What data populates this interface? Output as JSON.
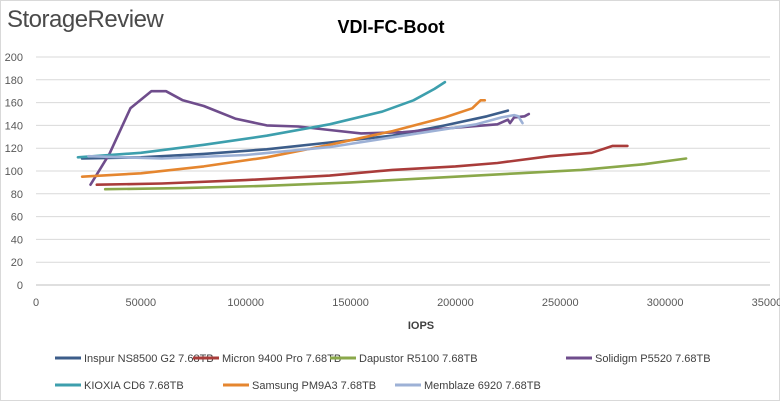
{
  "header": {
    "logo_text": "StorageReview"
  },
  "chart_data": {
    "type": "line",
    "title": "VDI-FC-Boot",
    "xlabel": "IOPS",
    "ylabel": "",
    "xlim": [
      0,
      350000
    ],
    "ylim": [
      0,
      200
    ],
    "xticks": [
      0,
      50000,
      100000,
      150000,
      200000,
      250000,
      300000,
      350000
    ],
    "yticks": [
      0,
      20,
      40,
      60,
      80,
      100,
      120,
      140,
      160,
      180,
      200
    ],
    "grid": true,
    "legend_position": "bottom",
    "series": [
      {
        "name": "Inspur NS8500 G2 7.68TB",
        "color": "#3c5d8a",
        "points": [
          [
            22000,
            111
          ],
          [
            50000,
            112
          ],
          [
            80000,
            115
          ],
          [
            110000,
            119
          ],
          [
            140000,
            125
          ],
          [
            170000,
            131
          ],
          [
            195000,
            140
          ],
          [
            215000,
            148
          ],
          [
            225000,
            153
          ]
        ]
      },
      {
        "name": "Micron 9400 Pro 7.68TB",
        "color": "#a93c3a",
        "points": [
          [
            29000,
            88
          ],
          [
            60000,
            89
          ],
          [
            100000,
            92
          ],
          [
            140000,
            96
          ],
          [
            170000,
            101
          ],
          [
            200000,
            104
          ],
          [
            220000,
            107
          ],
          [
            245000,
            113
          ],
          [
            265000,
            116
          ],
          [
            275000,
            122
          ],
          [
            282000,
            122
          ]
        ]
      },
      {
        "name": "Dapustor R5100 7.68TB",
        "color": "#8aa84a",
        "points": [
          [
            33000,
            84
          ],
          [
            70000,
            85
          ],
          [
            110000,
            87
          ],
          [
            150000,
            90
          ],
          [
            190000,
            94
          ],
          [
            230000,
            98
          ],
          [
            260000,
            101
          ],
          [
            290000,
            106
          ],
          [
            310000,
            111
          ]
        ]
      },
      {
        "name": "Solidigm P5520 7.68TB",
        "color": "#6f4d8c",
        "points": [
          [
            26000,
            88
          ],
          [
            35000,
            115
          ],
          [
            45000,
            155
          ],
          [
            55000,
            170
          ],
          [
            62000,
            170
          ],
          [
            70000,
            162
          ],
          [
            80000,
            157
          ],
          [
            95000,
            146
          ],
          [
            110000,
            140
          ],
          [
            125000,
            139
          ],
          [
            140000,
            136
          ],
          [
            155000,
            133
          ],
          [
            175000,
            134
          ],
          [
            200000,
            138
          ],
          [
            220000,
            141
          ],
          [
            225000,
            145
          ],
          [
            226000,
            142
          ],
          [
            228000,
            147
          ],
          [
            233000,
            148
          ],
          [
            235000,
            150
          ]
        ]
      },
      {
        "name": "KIOXIA CD6 7.68TB",
        "color": "#3d9fad",
        "points": [
          [
            20000,
            112
          ],
          [
            50000,
            116
          ],
          [
            80000,
            123
          ],
          [
            110000,
            131
          ],
          [
            140000,
            141
          ],
          [
            165000,
            152
          ],
          [
            180000,
            162
          ],
          [
            190000,
            172
          ],
          [
            195000,
            178
          ]
        ]
      },
      {
        "name": "Samsung PM9A3 7.68TB",
        "color": "#e5862f",
        "points": [
          [
            22000,
            95
          ],
          [
            50000,
            98
          ],
          [
            80000,
            104
          ],
          [
            110000,
            112
          ],
          [
            140000,
            123
          ],
          [
            170000,
            135
          ],
          [
            195000,
            147
          ],
          [
            208000,
            155
          ],
          [
            212000,
            162
          ],
          [
            214000,
            162
          ]
        ]
      },
      {
        "name": "Memblaze 6920 7.68TB",
        "color": "#9db1d6",
        "points": [
          [
            25000,
            113
          ],
          [
            60000,
            111
          ],
          [
            100000,
            114
          ],
          [
            140000,
            121
          ],
          [
            175000,
            131
          ],
          [
            210000,
            141
          ],
          [
            222000,
            147
          ],
          [
            228000,
            149
          ],
          [
            230000,
            148
          ],
          [
            232000,
            142
          ]
        ]
      }
    ]
  }
}
